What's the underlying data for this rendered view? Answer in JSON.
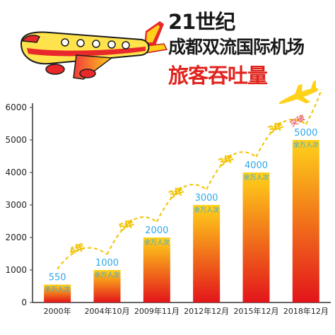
{
  "header": {
    "line1": "21世纪",
    "line2": "成都双流国际机场",
    "line3": "旅客吞吐量"
  },
  "colors": {
    "bar_top": "#ffd21a",
    "bar_bottom": "#e3141b",
    "value_text": "#2fa7e8",
    "dash": "#f2c200",
    "title_accent": "#e0231c"
  },
  "icons": [
    "airplane-illustration",
    "small-plane-icon"
  ],
  "chart_data": {
    "type": "bar",
    "categories": [
      "2000年",
      "2004年10月",
      "2009年11月",
      "2012年12月",
      "2015年12月",
      "2018年12月"
    ],
    "values": [
      550,
      1000,
      2000,
      3000,
      4000,
      5000
    ],
    "unit_label": "余万人次",
    "ylim": [
      0,
      6000
    ],
    "yticks": [
      0,
      1000,
      2000,
      3000,
      4000,
      5000,
      6000
    ],
    "grid": false,
    "intervals": [
      "4年",
      "5年",
      "3年",
      "3年",
      "3年"
    ],
    "annotation": "突破"
  }
}
